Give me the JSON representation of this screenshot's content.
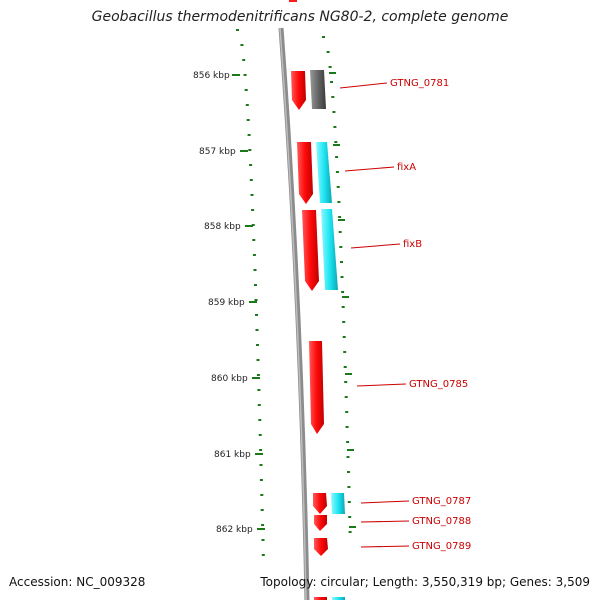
{
  "title": "Geobacillus thermodenitrificans NG80-2, complete genome",
  "accession": "Accession: NC_009328",
  "summary": "Topology: circular; Length: 3,550,319 bp; Genes: 3,509",
  "colors": {
    "forward_gene": "#ff1a1a",
    "reverse_gene": "#22e6f0",
    "reverse_gene_grey": "#666666",
    "backbone": "#8c8c8c",
    "ticks": "#1a7a1a",
    "label": "#cc0000"
  },
  "scale_ticks": [
    "856 kbp",
    "857 kbp",
    "858 kbp",
    "859 kbp",
    "860 kbp",
    "861 kbp",
    "862 kbp"
  ],
  "gene_labels": [
    "GTNG_0781",
    "fixA",
    "fixB",
    "GTNG_0785",
    "GTNG_0787",
    "GTNG_0788",
    "GTNG_0789"
  ]
}
